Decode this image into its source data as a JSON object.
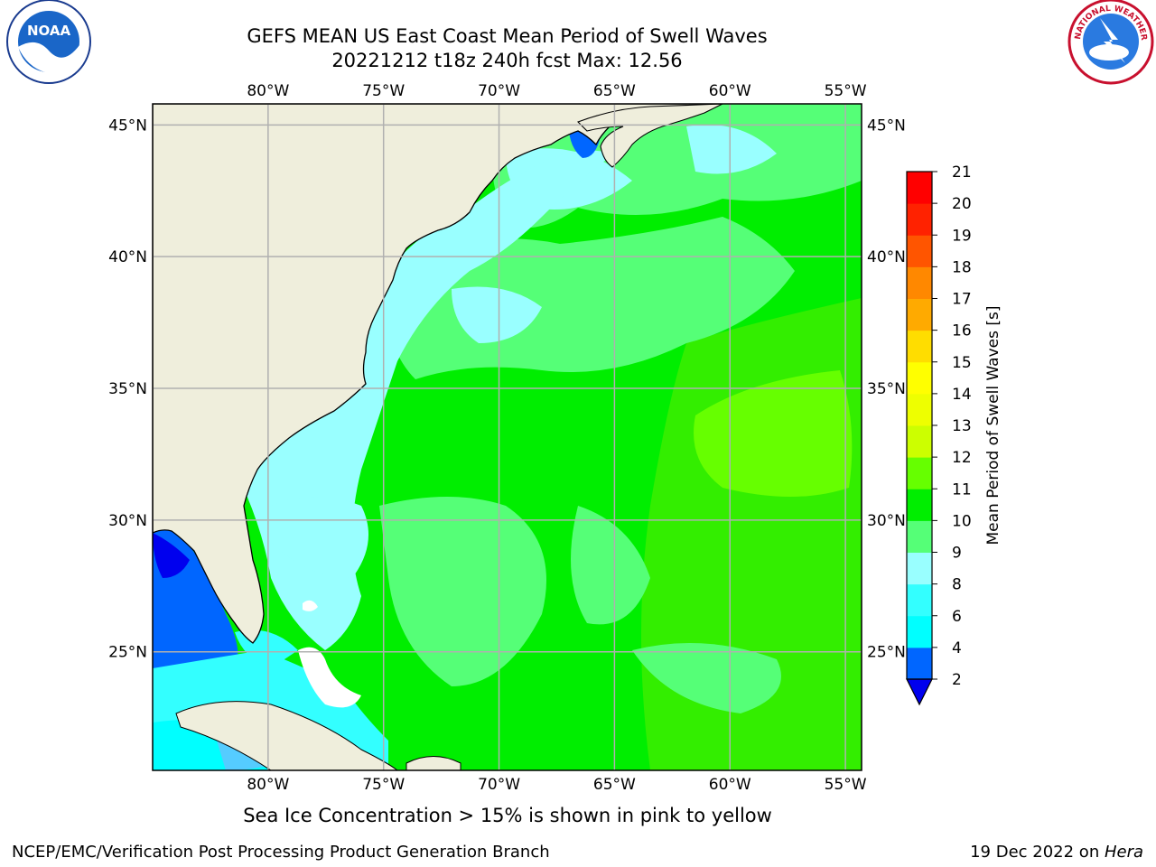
{
  "header": {
    "title_line1": "GEFS MEAN US East Coast Mean Period of Swell Waves",
    "title_line2": "20221212 t18z 240h fcst   Max: 12.56"
  },
  "logos": {
    "noara_text": "NOAA",
    "nws_text": "NATIONAL WEATHER SERVICE"
  },
  "map": {
    "extent": {
      "lon_min": -85,
      "lon_max": -54.3,
      "lat_min": 20.5,
      "lat_max": 45.8
    },
    "lon_ticks": [
      -80,
      -75,
      -70,
      -65,
      -60,
      -55
    ],
    "lon_labels": [
      "80°W",
      "75°W",
      "70°W",
      "65°W",
      "60°W",
      "55°W"
    ],
    "lat_ticks": [
      45,
      40,
      35,
      30,
      25
    ],
    "lat_labels": [
      "45°N",
      "40°N",
      "35°N",
      "30°N",
      "25°N"
    ],
    "colors": {
      "land": "#efeedc",
      "grid": "#b0b0b0",
      "coast": "#000000"
    }
  },
  "colorbar": {
    "label": "Mean Period of Swell Waves [s]",
    "levels": [
      "2",
      "4",
      "6",
      "8",
      "9",
      "10",
      "11",
      "12",
      "13",
      "14",
      "15",
      "16",
      "17",
      "18",
      "19",
      "20",
      "21"
    ],
    "level_values": [
      2,
      4,
      6,
      8,
      9,
      10,
      11,
      12,
      13,
      14,
      15,
      16,
      17,
      18,
      19,
      20,
      21
    ],
    "colors": [
      "#0066ff",
      "#00ffff",
      "#33ffff",
      "#99ffff",
      "#55ff77",
      "#00ee00",
      "#66ff00",
      "#ccff00",
      "#eeff00",
      "#ffff00",
      "#ffdd00",
      "#ffaa00",
      "#ff8800",
      "#ff5500",
      "#ff2200",
      "#ff0000"
    ],
    "under_color": "#0000ee"
  },
  "footer": {
    "note": "Sea Ice Concentration > 15% is shown in pink to yellow",
    "credit": "NCEP/EMC/Verification Post Processing Product Generation Branch",
    "date_prefix": "19 Dec 2022 on ",
    "date_machine": "Hera"
  }
}
